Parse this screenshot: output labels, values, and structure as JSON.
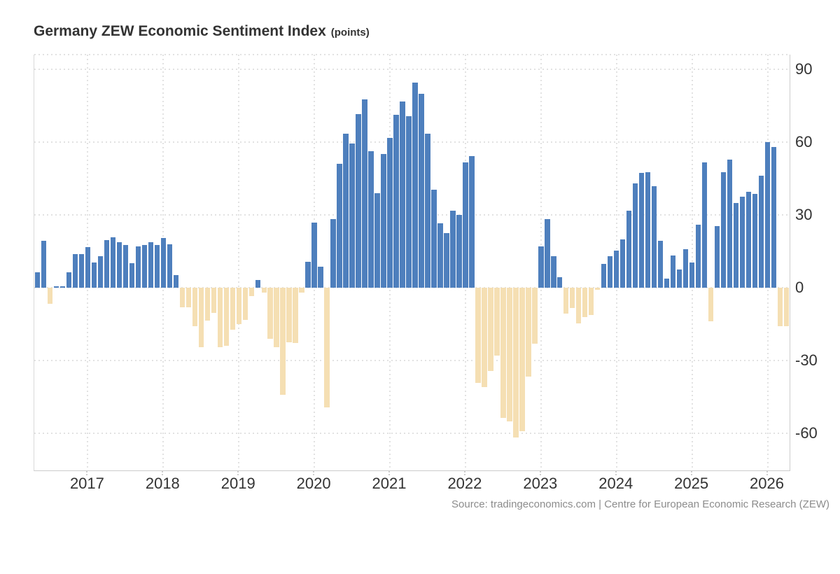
{
  "title": {
    "main": "Germany ZEW Economic Sentiment Index",
    "unit": "(points)"
  },
  "source": "Source: tradingeconomics.com | Centre for European Economic Research (ZEW)",
  "colors": {
    "positive_bar": "#4e7fbd",
    "negative_bar": "#f5dfb3",
    "grid": "#e2e2e2",
    "axis_line": "#cccccc",
    "axis_text": "#333333",
    "source_text": "#8c8c8c",
    "title_text": "#333333"
  },
  "chart_data": {
    "type": "bar",
    "title": "Germany ZEW Economic Sentiment Index",
    "ylabel": "points",
    "frequency": "monthly",
    "start": "2016-05",
    "end": "2026-04",
    "ylim": [
      -75.4,
      96
    ],
    "y_ticks": [
      90,
      60,
      30,
      0,
      -30,
      -60
    ],
    "x_ticks_years": [
      2017,
      2018,
      2019,
      2020,
      2021,
      2022,
      2023,
      2024,
      2025,
      2026
    ],
    "grid": "dotted",
    "legend": "none",
    "data": [
      {
        "year": 2016,
        "first_month": 5,
        "values": [
          6.4,
          19.2,
          -6.8,
          0.5,
          0.5,
          6.2,
          13.8,
          13.8
        ]
      },
      {
        "year": 2017,
        "first_month": 1,
        "values": [
          16.6,
          10.4,
          12.8,
          19.5,
          20.6,
          18.6,
          17.5,
          10.0,
          17.0,
          17.6,
          18.7,
          17.4
        ]
      },
      {
        "year": 2018,
        "first_month": 1,
        "values": [
          20.4,
          17.8,
          5.1,
          -8.2,
          -8.2,
          -16.1,
          -24.7,
          -13.7,
          -10.6,
          -24.7,
          -24.1,
          -17.5
        ]
      },
      {
        "year": 2019,
        "first_month": 1,
        "values": [
          -15.0,
          -13.4,
          -3.6,
          3.1,
          -2.1,
          -21.1,
          -24.5,
          -44.1,
          -22.5,
          -22.8,
          -2.1,
          10.7
        ]
      },
      {
        "year": 2020,
        "first_month": 1,
        "values": [
          26.7,
          8.7,
          -49.5,
          28.2,
          51.0,
          63.4,
          59.3,
          71.5,
          77.4,
          56.1,
          39.0,
          55.0
        ]
      },
      {
        "year": 2021,
        "first_month": 1,
        "values": [
          61.8,
          71.2,
          76.6,
          70.7,
          84.4,
          79.8,
          63.3,
          40.4,
          26.5,
          22.3,
          31.7,
          29.9
        ]
      },
      {
        "year": 2022,
        "first_month": 1,
        "values": [
          51.7,
          54.3,
          -39.3,
          -41.0,
          -34.3,
          -28.0,
          -53.8,
          -55.3,
          -61.9,
          -59.2,
          -36.7,
          -23.3
        ]
      },
      {
        "year": 2023,
        "first_month": 1,
        "values": [
          16.9,
          28.1,
          13.0,
          4.1,
          -10.7,
          -8.5,
          -14.7,
          -12.3,
          -11.4,
          -1.1,
          9.8,
          12.8
        ]
      },
      {
        "year": 2024,
        "first_month": 1,
        "values": [
          15.2,
          19.9,
          31.7,
          42.9,
          47.1,
          47.5,
          41.8,
          19.2,
          3.6,
          13.1,
          7.4,
          15.7
        ]
      },
      {
        "year": 2025,
        "first_month": 1,
        "values": [
          10.3,
          26.0,
          51.6,
          -14.0,
          25.2,
          47.5,
          52.7,
          34.7,
          37.3,
          39.3,
          38.5,
          46.0
        ]
      },
      {
        "year": 2026,
        "first_month": 1,
        "values": [
          59.8,
          57.8,
          -16.0,
          -16.0
        ]
      }
    ]
  }
}
